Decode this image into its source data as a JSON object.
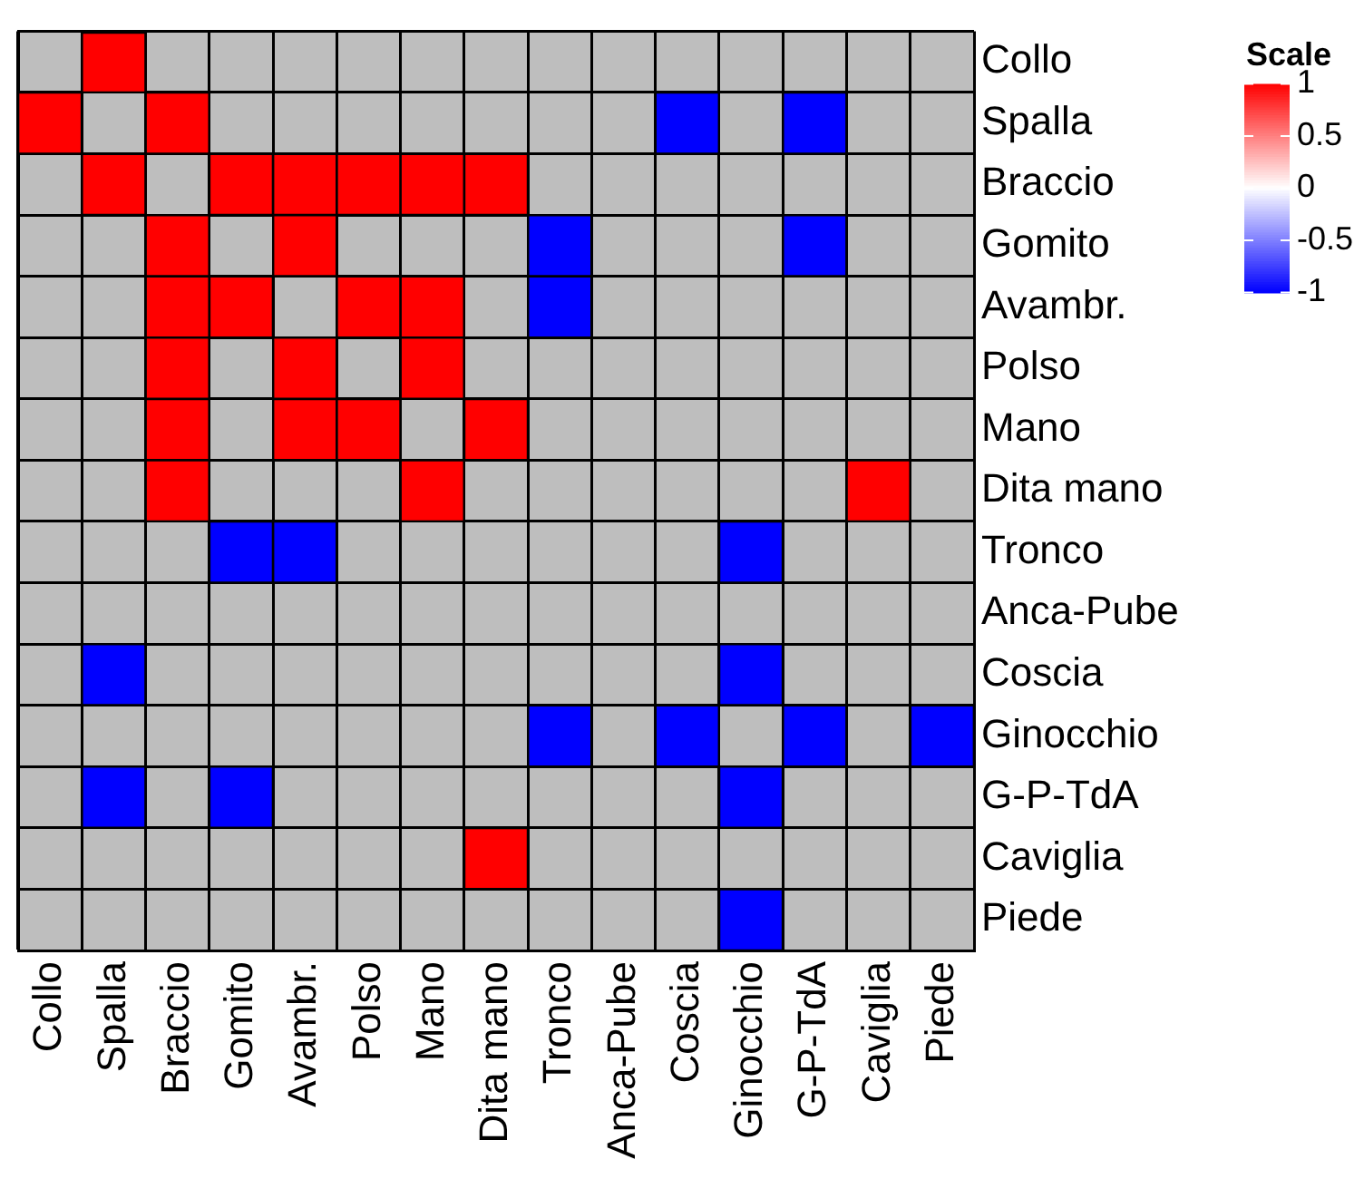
{
  "chart_data": {
    "type": "heatmap",
    "clabel": "Scale",
    "categories": [
      "Collo",
      "Spalla",
      "Braccio",
      "Gomito",
      "Avambr.",
      "Polso",
      "Mano",
      "Dita mano",
      "Tronco",
      "Anca-Pube",
      "Coscia",
      "Ginocchio",
      "G-P-TdA",
      "Caviglia",
      "Piede"
    ],
    "y_categories": [
      "Collo",
      "Spalla",
      "Braccio",
      "Gomito",
      "Avambr.",
      "Polso",
      "Mano",
      "Dita mano",
      "Tronco",
      "Anca-Pube",
      "Coscia",
      "Ginocchio",
      "G-P-TdA",
      "Caviglia",
      "Piede"
    ],
    "cells": [
      [
        null,
        1,
        null,
        null,
        null,
        null,
        null,
        null,
        null,
        null,
        null,
        null,
        null,
        null,
        null
      ],
      [
        1,
        null,
        1,
        null,
        null,
        null,
        null,
        null,
        null,
        null,
        -1,
        null,
        -1,
        null,
        null
      ],
      [
        null,
        1,
        null,
        1,
        1,
        1,
        1,
        1,
        null,
        null,
        null,
        null,
        null,
        null,
        null
      ],
      [
        null,
        null,
        1,
        null,
        1,
        null,
        null,
        null,
        -1,
        null,
        null,
        null,
        -1,
        null,
        null
      ],
      [
        null,
        null,
        1,
        1,
        null,
        1,
        1,
        null,
        -1,
        null,
        null,
        null,
        null,
        null,
        null
      ],
      [
        null,
        null,
        1,
        null,
        1,
        null,
        1,
        null,
        null,
        null,
        null,
        null,
        null,
        null,
        null
      ],
      [
        null,
        null,
        1,
        null,
        1,
        1,
        null,
        1,
        null,
        null,
        null,
        null,
        null,
        null,
        null
      ],
      [
        null,
        null,
        1,
        null,
        null,
        null,
        1,
        null,
        null,
        null,
        null,
        null,
        null,
        1,
        null
      ],
      [
        null,
        null,
        null,
        -1,
        -1,
        null,
        null,
        null,
        null,
        null,
        null,
        -1,
        null,
        null,
        null
      ],
      [
        null,
        null,
        null,
        null,
        null,
        null,
        null,
        null,
        null,
        null,
        null,
        null,
        null,
        null,
        null
      ],
      [
        null,
        -1,
        null,
        null,
        null,
        null,
        null,
        null,
        null,
        null,
        null,
        -1,
        null,
        null,
        null
      ],
      [
        null,
        null,
        null,
        null,
        null,
        null,
        null,
        null,
        -1,
        null,
        -1,
        null,
        -1,
        null,
        -1
      ],
      [
        null,
        -1,
        null,
        -1,
        null,
        null,
        null,
        null,
        null,
        null,
        null,
        -1,
        null,
        null,
        null
      ],
      [
        null,
        null,
        null,
        null,
        null,
        null,
        null,
        1,
        null,
        null,
        null,
        null,
        null,
        null,
        null
      ],
      [
        null,
        null,
        null,
        null,
        null,
        null,
        null,
        null,
        null,
        null,
        null,
        -1,
        null,
        null,
        null
      ]
    ],
    "clim": [
      -1,
      1
    ],
    "cticks": [
      -1,
      -0.5,
      0,
      0.5,
      1
    ]
  }
}
